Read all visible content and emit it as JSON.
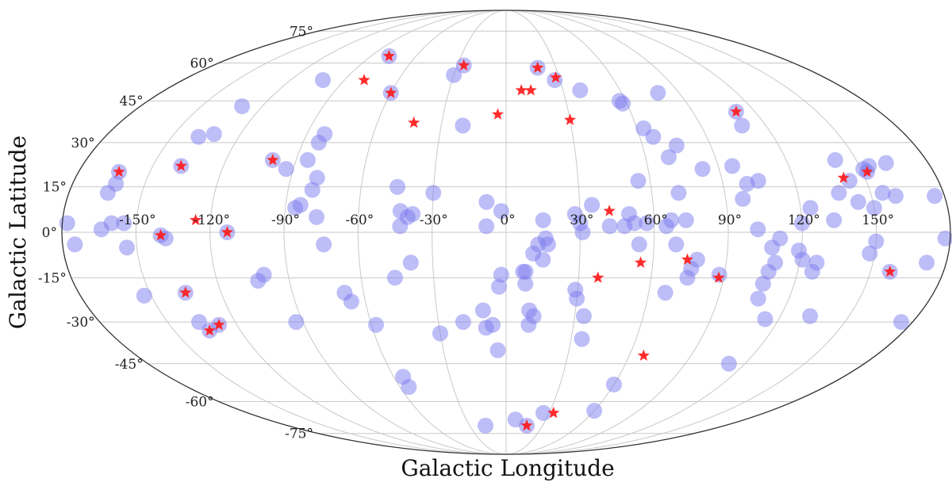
{
  "chart_data": {
    "type": "scatter",
    "projection": "mollweide",
    "xlabel": "Galactic Longitude",
    "ylabel": "Galactic Latitude",
    "xlim": [
      -180,
      180
    ],
    "ylim": [
      -90,
      90
    ],
    "grid": true,
    "x_ticks": [
      -150,
      -120,
      -90,
      -60,
      -30,
      0,
      30,
      60,
      90,
      120,
      150
    ],
    "y_ticks": [
      -75,
      -60,
      -45,
      -30,
      -15,
      0,
      15,
      30,
      45,
      60,
      75
    ],
    "x_tick_labels": [
      "-150°",
      "-120°",
      "-90°",
      "-60°",
      "-30°",
      "0°",
      "30°",
      "60°",
      "90°",
      "120°",
      "150°"
    ],
    "y_tick_labels": [
      "-75°",
      "-60°",
      "-45°",
      "-30°",
      "-15°",
      "0°",
      "15°",
      "30°",
      "45°",
      "60°",
      "75°"
    ],
    "colors": {
      "circles": "#7b7bf0",
      "stars": "#ff1a1a",
      "grid": "#c8c8c8",
      "frame": "#333333"
    },
    "series": [
      {
        "marker": "circle",
        "points": [
          [
            -178,
            3
          ],
          [
            -175,
            -4
          ],
          [
            -164,
            1
          ],
          [
            -164,
            13
          ],
          [
            -162,
            16
          ],
          [
            -160,
            3
          ],
          [
            -155,
            3
          ],
          [
            -154,
            -5
          ],
          [
            -153,
            -21
          ],
          [
            -163,
            20
          ],
          [
            -140,
            -1
          ],
          [
            -138,
            -2
          ],
          [
            -135,
            -20
          ],
          [
            -136,
            -30
          ],
          [
            -134,
            -33
          ],
          [
            -128,
            -31
          ],
          [
            -138,
            32
          ],
          [
            -132,
            33
          ],
          [
            -130,
            43
          ],
          [
            -138,
            22
          ],
          [
            -113,
            0
          ],
          [
            -103,
            -16
          ],
          [
            -100,
            -14
          ],
          [
            -100,
            24
          ],
          [
            -93,
            -30
          ],
          [
            -93,
            21
          ],
          [
            -86,
            8
          ],
          [
            -84,
            9
          ],
          [
            -85,
            24
          ],
          [
            -83,
            30
          ],
          [
            -82,
            33
          ],
          [
            -80,
            14
          ],
          [
            -79,
            18
          ],
          [
            -77,
            5
          ],
          [
            -74,
            -4
          ],
          [
            -68,
            -20
          ],
          [
            -66,
            -23
          ],
          [
            -102,
            53
          ],
          [
            -78,
            63
          ],
          [
            -60,
            48
          ],
          [
            -58,
            -31
          ],
          [
            -55,
            -54
          ],
          [
            -55,
            -50
          ],
          [
            -46,
            -15
          ],
          [
            -45,
            15
          ],
          [
            -43,
            7
          ],
          [
            -40,
            5
          ],
          [
            -39,
            -10
          ],
          [
            -38,
            6
          ],
          [
            -43,
            2
          ],
          [
            -30,
            55
          ],
          [
            -30,
            -34
          ],
          [
            -30,
            13
          ],
          [
            -26,
            59
          ],
          [
            -20,
            36
          ],
          [
            -19,
            -30
          ],
          [
            -17,
            -71
          ],
          [
            -10,
            -26
          ],
          [
            -9,
            -32
          ],
          [
            -8,
            10
          ],
          [
            -8,
            2
          ],
          [
            -6,
            -31
          ],
          [
            -4,
            -40
          ],
          [
            -3,
            -18
          ],
          [
            -2,
            -14
          ],
          [
            -2,
            7
          ],
          [
            7,
            -13
          ],
          [
            7,
            -68
          ],
          [
            8,
            -13
          ],
          [
            8,
            -17
          ],
          [
            10,
            -26
          ],
          [
            10,
            -31
          ],
          [
            11,
            -7
          ],
          [
            12,
            -28
          ],
          [
            13,
            -4
          ],
          [
            15,
            4
          ],
          [
            15,
            -9
          ],
          [
            16,
            -2
          ],
          [
            17,
            -4
          ],
          [
            17,
            -71
          ],
          [
            19,
            58
          ],
          [
            26,
            -65
          ],
          [
            27,
            53
          ],
          [
            28,
            6
          ],
          [
            29,
            -19
          ],
          [
            30,
            -22
          ],
          [
            30,
            3
          ],
          [
            31,
            0
          ],
          [
            34,
            -28
          ],
          [
            35,
            -36
          ],
          [
            35,
            9
          ],
          [
            39,
            49
          ],
          [
            42,
            2
          ],
          [
            48,
            2
          ],
          [
            50,
            6
          ],
          [
            52,
            3
          ],
          [
            54,
            -4
          ],
          [
            55,
            17
          ],
          [
            57,
            3
          ],
          [
            58,
            44
          ],
          [
            57,
            45
          ],
          [
            60,
            -53
          ],
          [
            60,
            -64
          ],
          [
            63,
            35
          ],
          [
            65,
            2
          ],
          [
            66,
            32
          ],
          [
            67,
            4
          ],
          [
            67,
            -20
          ],
          [
            70,
            25
          ],
          [
            69,
            -4
          ],
          [
            71,
            13
          ],
          [
            73,
            4
          ],
          [
            76,
            -12
          ],
          [
            75,
            -15
          ],
          [
            78,
            -9
          ],
          [
            75,
            29
          ],
          [
            79,
            48
          ],
          [
            83,
            21
          ],
          [
            88,
            -14
          ],
          [
            96,
            22
          ],
          [
            97,
            11
          ],
          [
            100,
            16
          ],
          [
            102,
            1
          ],
          [
            105,
            17
          ],
          [
            107,
            -17
          ],
          [
            107,
            -22
          ],
          [
            108,
            -13
          ],
          [
            108,
            -5
          ],
          [
            109,
            36
          ],
          [
            110,
            -10
          ],
          [
            111,
            -2
          ],
          [
            111,
            41
          ],
          [
            114,
            -29
          ],
          [
            112,
            -45
          ],
          [
            120,
            3
          ],
          [
            119,
            -6
          ],
          [
            121,
            -9
          ],
          [
            124,
            8
          ],
          [
            126,
            -13
          ],
          [
            127,
            -10
          ],
          [
            133,
            -28
          ],
          [
            133,
            4
          ],
          [
            137,
            13
          ],
          [
            141,
            24
          ],
          [
            143,
            17
          ],
          [
            144,
            10
          ],
          [
            150,
            8
          ],
          [
            150,
            -3
          ],
          [
            148,
            -7
          ],
          [
            151,
            21
          ],
          [
            152,
            20
          ],
          [
            154,
            22
          ],
          [
            155,
            13
          ],
          [
            158,
            -13
          ],
          [
            162,
            23
          ],
          [
            172,
            -10
          ],
          [
            176,
            12
          ],
          [
            178,
            -2
          ],
          [
            175,
            -30
          ],
          [
            160,
            12
          ]
        ]
      },
      {
        "marker": "star",
        "points": [
          [
            -163,
            20
          ],
          [
            -138,
            22
          ],
          [
            -140,
            -1
          ],
          [
            -135,
            -20
          ],
          [
            -128,
            -31
          ],
          [
            -134,
            -33
          ],
          [
            -126,
            4
          ],
          [
            -113,
            0
          ],
          [
            -100,
            24
          ],
          [
            -78,
            63
          ],
          [
            -79,
            53
          ],
          [
            -60,
            48
          ],
          [
            -43,
            37
          ],
          [
            -26,
            59
          ],
          [
            -4,
            40
          ],
          [
            8,
            49
          ],
          [
            13,
            49
          ],
          [
            19,
            58
          ],
          [
            28,
            54
          ],
          [
            30,
            38
          ],
          [
            38,
            -15
          ],
          [
            42,
            7
          ],
          [
            55,
            -10
          ],
          [
            67,
            -42
          ],
          [
            74,
            -9
          ],
          [
            88,
            -15
          ],
          [
            111,
            41
          ],
          [
            141,
            18
          ],
          [
            152,
            20
          ],
          [
            158,
            -13
          ],
          [
            17,
            -71
          ],
          [
            33,
            -65
          ]
        ]
      }
    ]
  }
}
